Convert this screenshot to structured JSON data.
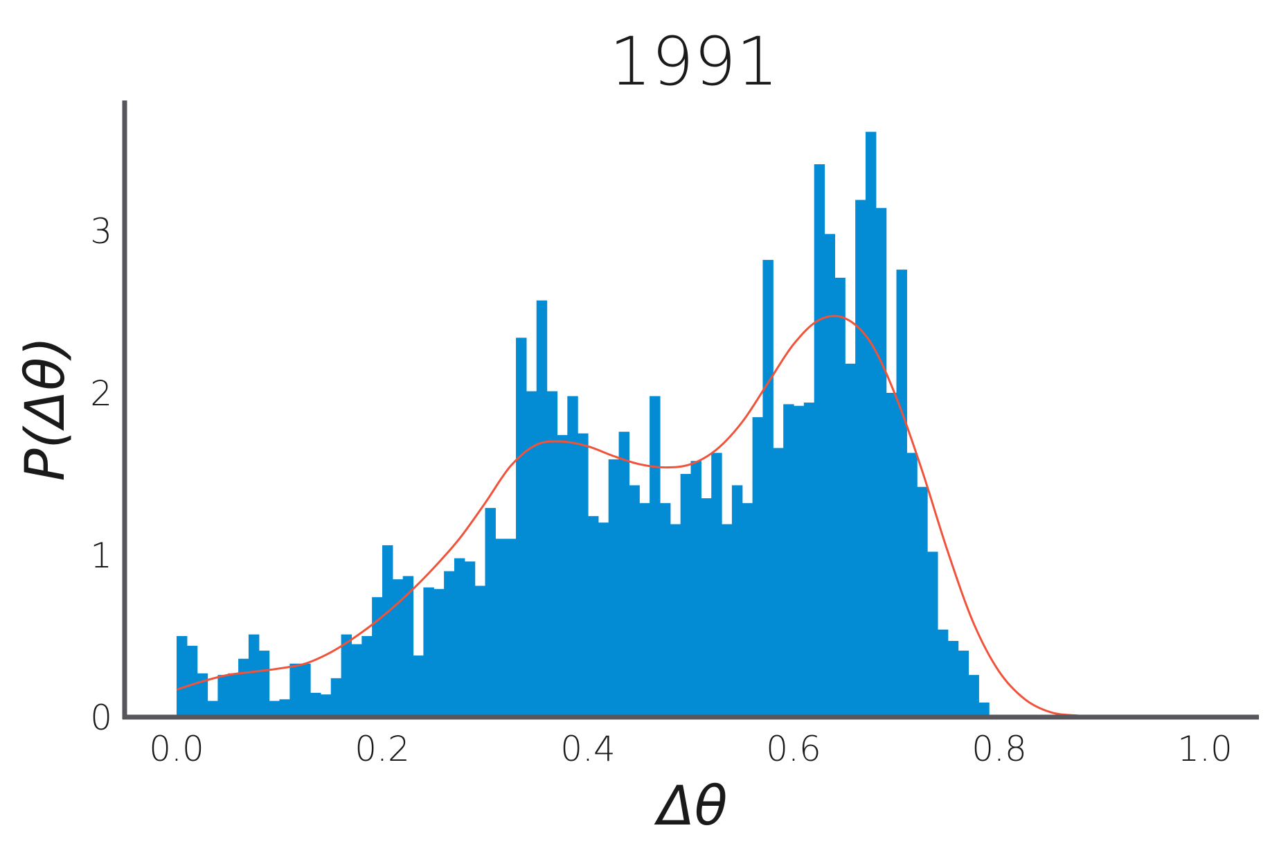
{
  "chart_data": {
    "type": "bar",
    "title": "1991",
    "xlabel": "Δθ",
    "ylabel": "P(Δθ)",
    "xlim": [
      -0.05,
      1.05
    ],
    "ylim": [
      0,
      3.75
    ],
    "xticks": [
      0.0,
      0.2,
      0.4,
      0.6,
      0.8,
      1.0
    ],
    "xtick_labels": [
      "0.0",
      "0.2",
      "0.4",
      "0.6",
      "0.8",
      "1.0"
    ],
    "yticks": [
      0,
      1,
      2,
      3
    ],
    "ytick_labels": [
      "0",
      "1",
      "2",
      "3"
    ],
    "grid": false,
    "histogram": {
      "bin_start": 0.0,
      "bin_width": 0.01,
      "values": [
        0.5,
        0.44,
        0.27,
        0.1,
        0.26,
        0.27,
        0.36,
        0.51,
        0.41,
        0.1,
        0.11,
        0.33,
        0.33,
        0.15,
        0.14,
        0.24,
        0.51,
        0.45,
        0.5,
        0.74,
        1.06,
        0.85,
        0.87,
        0.38,
        0.8,
        0.79,
        0.9,
        0.98,
        0.96,
        0.81,
        1.29,
        1.1,
        1.1,
        2.34,
        2.01,
        2.57,
        2.01,
        1.74,
        1.98,
        1.75,
        1.24,
        1.2,
        1.59,
        1.76,
        1.43,
        1.32,
        1.98,
        1.32,
        1.19,
        1.5,
        1.58,
        1.35,
        1.63,
        1.19,
        1.43,
        1.32,
        1.85,
        2.82,
        1.66,
        1.93,
        1.92,
        1.94,
        3.41,
        2.98,
        2.71,
        2.18,
        3.19,
        3.61,
        3.14,
        2.0,
        2.76,
        1.63,
        1.42,
        1.02,
        0.54,
        0.47,
        0.41,
        0.26,
        0.09
      ],
      "color": "#038cd4"
    },
    "kde": {
      "color": "#f0533a",
      "x": [
        0.0,
        0.025,
        0.05,
        0.075,
        0.1,
        0.125,
        0.15,
        0.175,
        0.2,
        0.225,
        0.25,
        0.275,
        0.3,
        0.325,
        0.35,
        0.375,
        0.4,
        0.425,
        0.45,
        0.475,
        0.5,
        0.525,
        0.55,
        0.575,
        0.6,
        0.625,
        0.65,
        0.675,
        0.7,
        0.725,
        0.75,
        0.775,
        0.8,
        0.825,
        0.85,
        0.875,
        0.9,
        1.0
      ],
      "y": [
        0.17,
        0.22,
        0.26,
        0.28,
        0.3,
        0.33,
        0.4,
        0.5,
        0.62,
        0.76,
        0.92,
        1.1,
        1.32,
        1.55,
        1.68,
        1.7,
        1.67,
        1.61,
        1.56,
        1.54,
        1.56,
        1.65,
        1.82,
        2.06,
        2.3,
        2.45,
        2.46,
        2.31,
        1.97,
        1.52,
        1.02,
        0.58,
        0.28,
        0.11,
        0.03,
        0.01,
        0.0,
        0.0
      ]
    }
  },
  "colors": {
    "axis": "#56565c",
    "bars": "#038cd4",
    "kde": "#f0533a",
    "text": "#1a1a1a"
  }
}
